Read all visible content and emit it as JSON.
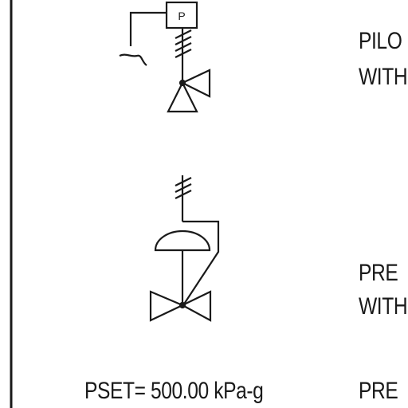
{
  "symbols": {
    "pilot": {
      "actuator_letter": "P",
      "caption_line1": "PILO",
      "caption_line2": "WITH"
    },
    "regulator": {
      "caption_line1": "PRE",
      "caption_line2": "WITH"
    }
  },
  "footer": {
    "pset_label": "PSET= 500.00 kPa-g",
    "caption": "PRE"
  },
  "colors": {
    "line": "#1a1a1a",
    "background": "#ffffff"
  }
}
